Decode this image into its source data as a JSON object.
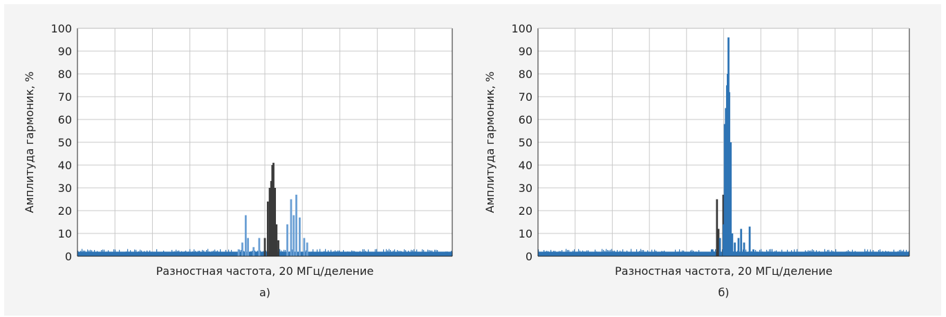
{
  "chart_data": [
    {
      "type": "bar",
      "panel_label": "а)",
      "xlabel": "Разностная частота, 20 МГц/деление",
      "ylabel": "Амплитуда гармоник, %",
      "ylim": [
        0,
        100
      ],
      "yticks": [
        "0",
        "10",
        "20",
        "30",
        "40",
        "50",
        "60",
        "70",
        "80",
        "90",
        "100"
      ],
      "x_divisions": 10,
      "grid": true,
      "colors": {
        "series_blue": "#2e74b5",
        "series_light": "#6a9fd4",
        "series_dark": "#3a3a3a"
      },
      "noise_floor": 2,
      "series": [
        {
          "color": "series_dark",
          "peaks": [
            [
              5.0,
              8
            ],
            [
              5.08,
              24
            ],
            [
              5.13,
              30
            ],
            [
              5.17,
              33
            ],
            [
              5.2,
              40
            ],
            [
              5.23,
              41
            ],
            [
              5.27,
              30
            ],
            [
              5.31,
              14
            ],
            [
              5.36,
              7
            ]
          ]
        },
        {
          "color": "series_light",
          "peaks": [
            [
              4.3,
              3
            ],
            [
              4.4,
              6
            ],
            [
              4.49,
              18
            ],
            [
              4.55,
              8
            ],
            [
              4.7,
              4
            ],
            [
              4.85,
              8
            ],
            [
              5.6,
              14
            ],
            [
              5.7,
              25
            ],
            [
              5.77,
              18
            ],
            [
              5.84,
              27
            ],
            [
              5.93,
              17
            ],
            [
              6.05,
              8
            ],
            [
              6.13,
              6
            ]
          ]
        }
      ]
    },
    {
      "type": "bar",
      "panel_label": "б)",
      "xlabel": "Разностная частота, 20 МГц/деление",
      "ylabel": "Амплитуда гармоник, %",
      "ylim": [
        0,
        100
      ],
      "yticks": [
        "0",
        "10",
        "20",
        "30",
        "40",
        "50",
        "60",
        "70",
        "80",
        "90",
        "100"
      ],
      "x_divisions": 10,
      "grid": true,
      "colors": {
        "series_blue": "#2e74b5",
        "series_light": "#6a9fd4",
        "series_dark": "#3a3a3a"
      },
      "noise_floor": 2,
      "series": [
        {
          "color": "series_dark",
          "peaks": [
            [
              4.82,
              25
            ],
            [
              4.86,
              12
            ],
            [
              4.99,
              27
            ],
            [
              5.12,
              36
            ],
            [
              5.16,
              15
            ]
          ]
        },
        {
          "color": "series_blue",
          "peaks": [
            [
              4.7,
              3
            ],
            [
              4.9,
              8
            ],
            [
              5.0,
              14
            ],
            [
              5.03,
              58
            ],
            [
              5.06,
              65
            ],
            [
              5.09,
              75
            ],
            [
              5.11,
              80
            ],
            [
              5.13,
              96
            ],
            [
              5.15,
              72
            ],
            [
              5.19,
              50
            ],
            [
              5.23,
              10
            ],
            [
              5.3,
              6
            ],
            [
              5.4,
              8
            ],
            [
              5.47,
              12
            ],
            [
              5.55,
              6
            ],
            [
              5.7,
              13
            ],
            [
              5.8,
              3
            ]
          ]
        }
      ]
    }
  ]
}
